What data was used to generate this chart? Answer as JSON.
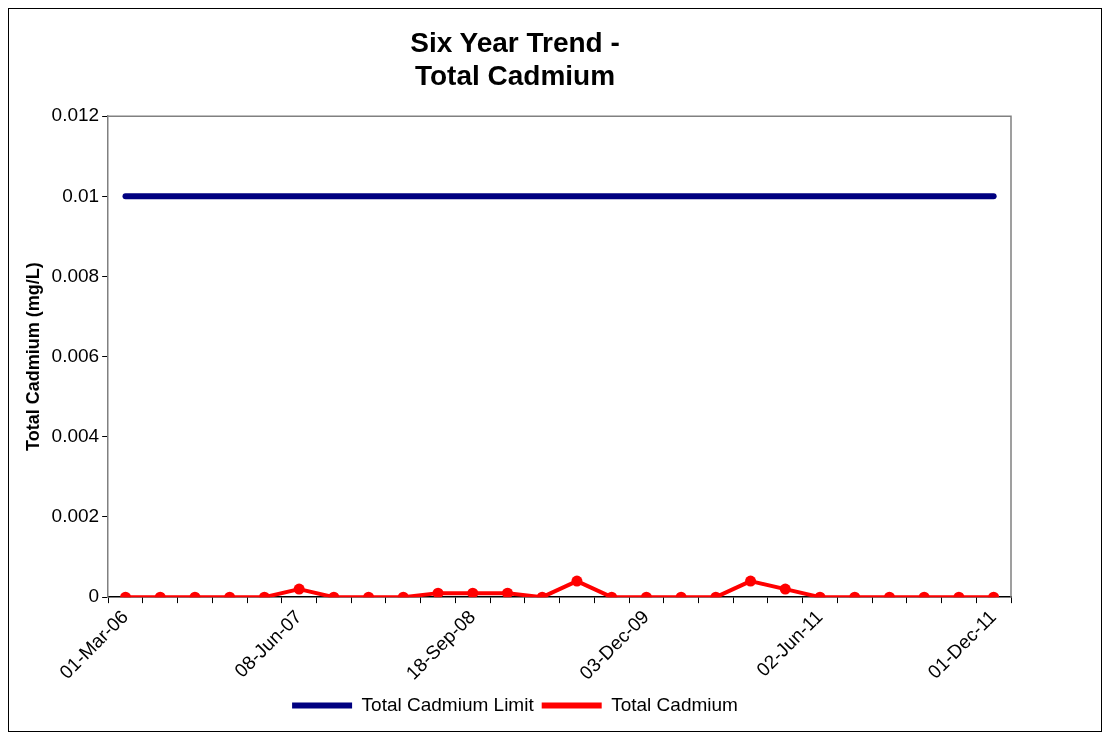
{
  "chart_data": {
    "type": "line",
    "title": [
      "Six Year Trend -",
      "Total Cadmium"
    ],
    "ylabel": "Total Cadmium (mg/L)",
    "categories": [
      "01-Mar-06",
      null,
      null,
      null,
      null,
      "08-Jun-07",
      null,
      null,
      null,
      null,
      "18-Sep-08",
      null,
      null,
      null,
      null,
      "03-Dec-09",
      null,
      null,
      null,
      null,
      "02-Jun-11",
      null,
      null,
      null,
      null,
      "01-Dec-11"
    ],
    "series": [
      {
        "name": "Total Cadmium Limit",
        "color": "#000080",
        "marker": "none",
        "values": [
          0.01,
          0.01,
          0.01,
          0.01,
          0.01,
          0.01,
          0.01,
          0.01,
          0.01,
          0.01,
          0.01,
          0.01,
          0.01,
          0.01,
          0.01,
          0.01,
          0.01,
          0.01,
          0.01,
          0.01,
          0.01,
          0.01,
          0.01,
          0.01,
          0.01,
          0.01
        ]
      },
      {
        "name": "Total Cadmium",
        "color": "#ff0000",
        "marker": "circle",
        "values": [
          0,
          0,
          0,
          0,
          0,
          0.0002,
          0,
          0,
          0,
          0.0001,
          0.0001,
          0.0001,
          0,
          0.0004,
          0,
          0,
          0,
          0,
          0.0004,
          0.0002,
          0,
          0,
          0,
          0,
          0,
          0
        ]
      }
    ],
    "ylim": [
      0,
      0.012
    ],
    "yticks": [
      0,
      0.002,
      0.004,
      0.006,
      0.008,
      0.01,
      0.012
    ],
    "grid": false,
    "legend": "bottom"
  }
}
